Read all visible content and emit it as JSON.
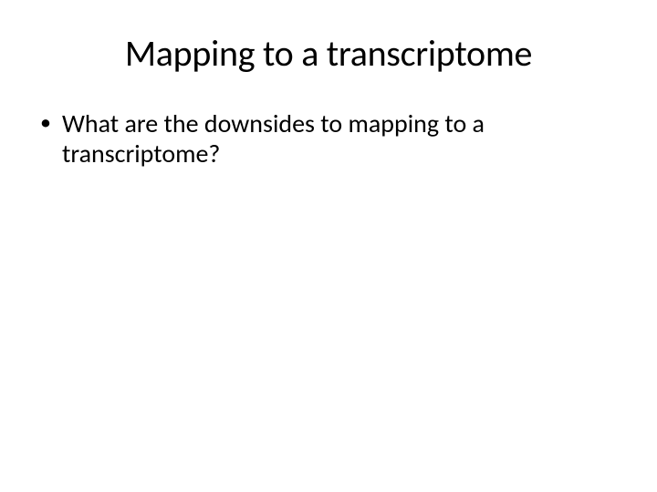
{
  "slide": {
    "title": "Mapping to a transcriptome",
    "bullets": [
      {
        "marker": "•",
        "text": "What are the downsides to mapping to a transcriptome?"
      }
    ],
    "background_color": "#ffffff",
    "text_color": "#000000",
    "title_fontsize": 40,
    "body_fontsize": 28,
    "font_family": "Calibri"
  }
}
